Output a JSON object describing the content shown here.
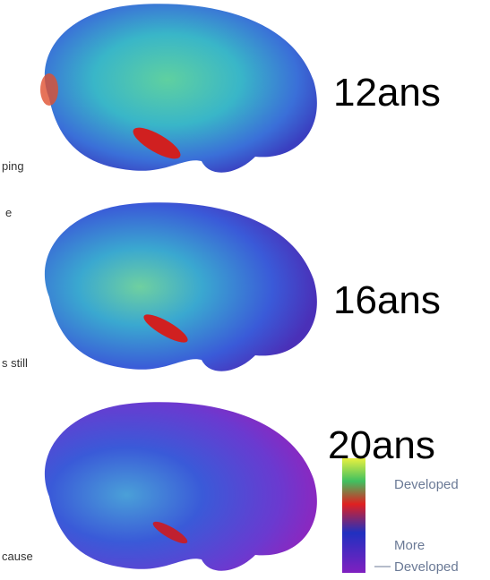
{
  "labels": [
    "12ans",
    "16ans",
    "20ans"
  ],
  "legend": {
    "less": "Developed",
    "more": "More",
    "more_developed": "Developed"
  },
  "fragments": [
    "ping",
    "e",
    "s still",
    "cause"
  ]
}
